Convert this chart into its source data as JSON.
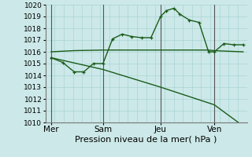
{
  "background_color": "#cce8e8",
  "grid_color": "#aad4d4",
  "line_color": "#1a5c1a",
  "vline_color": "#555555",
  "ylim": [
    1010,
    1020
  ],
  "xlim": [
    0,
    10.5
  ],
  "yticks": [
    1010,
    1011,
    1012,
    1013,
    1014,
    1015,
    1016,
    1017,
    1018,
    1019,
    1020
  ],
  "xlabel": "Pression niveau de la mer( hPa )",
  "day_labels": [
    "Mer",
    "Sam",
    "Jeu",
    "Ven"
  ],
  "day_positions": [
    0.3,
    3.0,
    6.0,
    8.8
  ],
  "vline_positions": [
    0.3,
    3.0,
    6.0,
    8.8
  ],
  "line1_x": [
    0.3,
    0.9,
    1.5,
    2.0,
    2.5,
    3.0,
    3.5,
    4.0,
    4.5,
    5.0,
    5.5,
    6.0,
    6.3,
    6.7,
    7.0,
    7.5,
    8.0,
    8.5,
    8.8,
    9.3,
    9.8,
    10.3
  ],
  "line1_y": [
    1015.5,
    1015.1,
    1014.3,
    1014.3,
    1015.0,
    1015.0,
    1017.1,
    1017.5,
    1017.3,
    1017.2,
    1017.2,
    1019.0,
    1019.5,
    1019.7,
    1019.2,
    1018.7,
    1018.5,
    1016.0,
    1016.0,
    1016.7,
    1016.6,
    1016.6
  ],
  "line2_x": [
    0.3,
    1.5,
    3.0,
    4.5,
    6.0,
    7.0,
    8.5,
    8.8,
    9.5,
    10.3
  ],
  "line2_y": [
    1016.0,
    1016.1,
    1016.15,
    1016.15,
    1016.15,
    1016.15,
    1016.15,
    1016.1,
    1016.05,
    1016.0
  ],
  "line3_x": [
    0.3,
    3.0,
    6.0,
    8.8,
    10.3
  ],
  "line3_y": [
    1015.5,
    1014.5,
    1013.0,
    1011.5,
    1009.7
  ],
  "xlabel_fontsize": 8,
  "tick_fontsize": 6.5,
  "day_fontsize": 7.5,
  "marker_size": 3.5,
  "line_width": 1.0
}
